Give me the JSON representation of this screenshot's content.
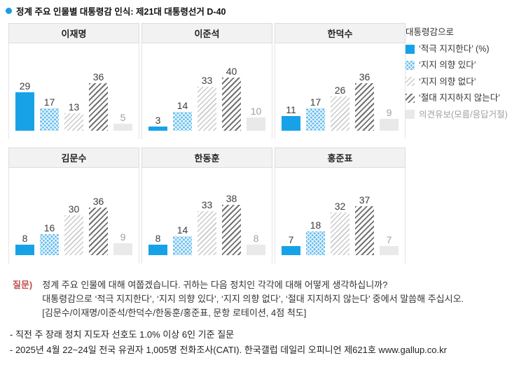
{
  "title": {
    "text": "정계 주요 인물별 대통령감 인식: 제21대 대통령선거 D-40"
  },
  "chart_data": {
    "type": "bar",
    "unit": "%",
    "title": "정계 주요 인물별 대통령감 인식: 제21대 대통령선거 D-40",
    "categories": [
      "‘적극 지지한다’",
      "‘지지 의향 있다’",
      "‘지지 의향 없다’",
      "‘절대 지지하지 않는다’",
      "의견유보(모름/응답거절)"
    ],
    "ylim": [
      0,
      45
    ],
    "grid": false,
    "legend_position": "right",
    "panels": [
      {
        "name": "이재명",
        "values": [
          29,
          17,
          13,
          36,
          5
        ]
      },
      {
        "name": "이준석",
        "values": [
          3,
          14,
          33,
          40,
          10
        ]
      },
      {
        "name": "한덕수",
        "values": [
          11,
          17,
          26,
          36,
          9
        ]
      },
      {
        "name": "김문수",
        "values": [
          8,
          16,
          30,
          36,
          9
        ]
      },
      {
        "name": "한동훈",
        "values": [
          8,
          14,
          33,
          38,
          8
        ]
      },
      {
        "name": "홍준표",
        "values": [
          7,
          18,
          32,
          37,
          7
        ]
      }
    ]
  },
  "legend": {
    "title": "대통령감으로",
    "items": [
      {
        "label": "‘적극 지지한다’ (%)"
      },
      {
        "label": "‘지지 의향 있다’"
      },
      {
        "label": "‘지지 의향 없다’"
      },
      {
        "label": "‘절대 지지하지 않는다’"
      },
      {
        "label": "의견유보(모름/응답거절)"
      }
    ]
  },
  "question": {
    "label": "질문)",
    "lines": [
      "정계 주요 인물에 대해 여쭙겠습니다. 귀하는 다음 정치인 각각에 대해 어떻게 생각하십니까?",
      "대통령감으로 ‘적극 지지한다’, ‘지지 의향 있다’, ‘지지 의향 없다’, ‘절대 지지하지 않는다’ 중에서 말씀해 주십시오.",
      "[김문수/이재명/이준석/한덕수/한동훈/홍준표, 문항 로테이션, 4점 척도]"
    ]
  },
  "footnotes": [
    "- 직전 주 장래 정치 지도자 선호도 1.0% 이상 6인 기준 질문",
    "- 2025년 4월 22~24일 전국 유권자 1,005명 전화조사(CATI). 한국갤럽 데일리 오피니언 제621호 www.gallup.co.kr"
  ],
  "colors": {
    "accent_blue": "#17a2e8",
    "pattern_blue": "#6cc0ee",
    "hatch_light": "#c9c9c9",
    "hatch_dark": "#707070",
    "neutral_gray": "#e9e9e9",
    "question_label": "#c0504d"
  }
}
